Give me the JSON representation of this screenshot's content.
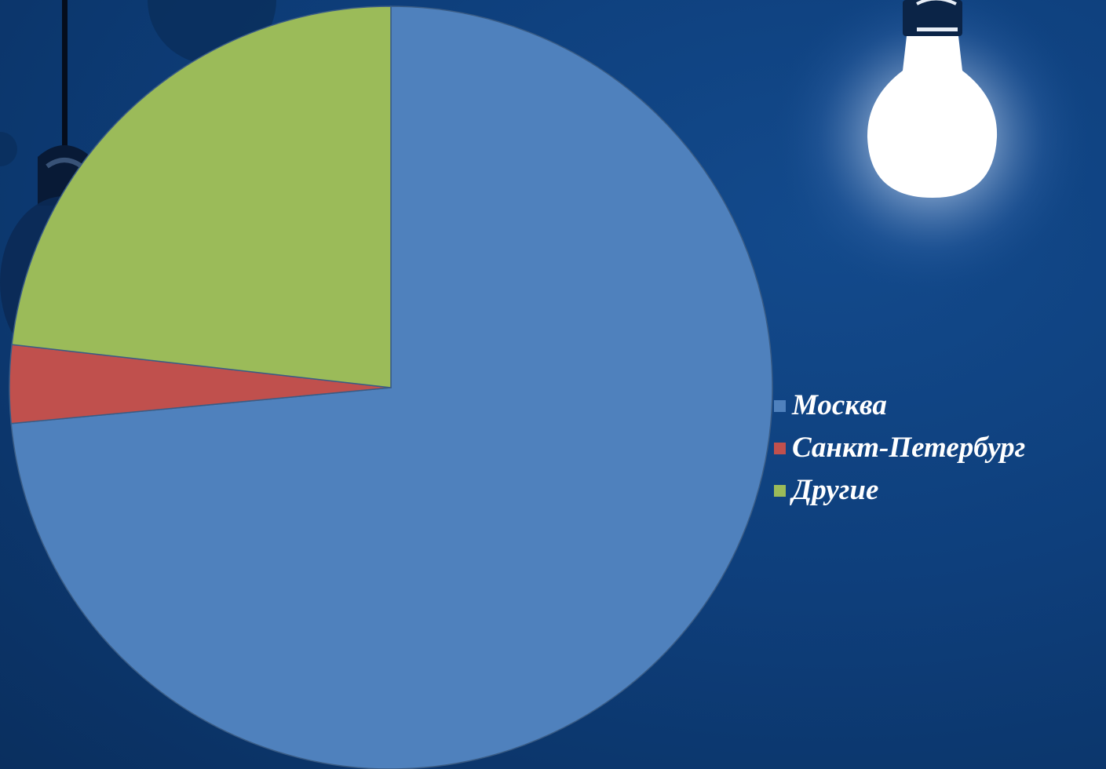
{
  "chart_data": {
    "type": "pie",
    "categories": [
      "Москва",
      "Санкт-Петербург",
      "Другие"
    ],
    "values": [
      73.5,
      3.3,
      23.2
    ],
    "colors": [
      "#4f81bd",
      "#c0504d",
      "#9bbb59"
    ],
    "legend_position": "right"
  },
  "legend": {
    "items": [
      {
        "label": "Москва",
        "color": "#4f81bd"
      },
      {
        "label": "Санкт-Петербург",
        "color": "#c0504d"
      },
      {
        "label": "Другие",
        "color": "#9bbb59"
      }
    ]
  },
  "decorations": {
    "icons": [
      "light-bulb-glowing-icon",
      "light-bulb-dark-icon"
    ]
  }
}
